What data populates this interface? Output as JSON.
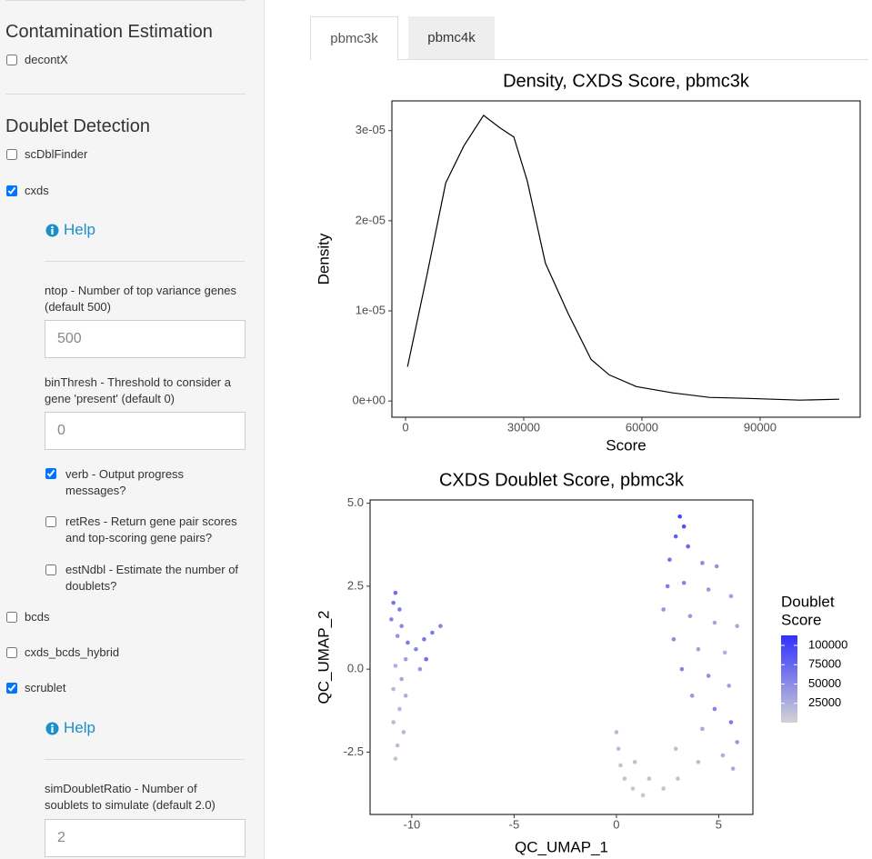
{
  "sidebar": {
    "contamination": {
      "title": "Contamination Estimation",
      "options": [
        {
          "label": "decontX",
          "checked": false
        }
      ]
    },
    "doublet": {
      "title": "Doublet Detection",
      "options": [
        {
          "label": "scDblFinder",
          "checked": false
        },
        {
          "label": "cxds",
          "checked": true
        },
        {
          "label": "bcds",
          "checked": false
        },
        {
          "label": "cxds_bcds_hybrid",
          "checked": false
        },
        {
          "label": "scrublet",
          "checked": true
        }
      ]
    },
    "cxds_params": {
      "help": "Help",
      "inputs": [
        {
          "label": "ntop - Number of top variance genes (default 500)",
          "value": "500"
        },
        {
          "label": "binThresh - Threshold to consider a gene 'present' (default 0)",
          "value": "0"
        }
      ],
      "flags": [
        {
          "label": "verb - Output progress messages?",
          "checked": true
        },
        {
          "label": "retRes - Return gene pair scores and top-scoring gene pairs?",
          "checked": false
        },
        {
          "label": "estNdbl - Estimate the number of doublets?",
          "checked": false
        }
      ]
    },
    "scrublet_params": {
      "help": "Help",
      "inputs": [
        {
          "label": "simDoubletRatio - Number of soublets to simulate (default 2.0)",
          "value": "2"
        }
      ]
    }
  },
  "tabs": {
    "items": [
      "pbmc3k",
      "pbmc4k"
    ],
    "active": 0
  },
  "chart_data": [
    {
      "type": "line",
      "title": "Density, CXDS Score, pbmc3k",
      "x_label": "Score",
      "y_label": "Density",
      "color": "#000000",
      "grid": false,
      "x": [
        500,
        5500,
        10200,
        14800,
        19800,
        24000,
        27500,
        30900,
        35500,
        41300,
        47100,
        51700,
        58600,
        67800,
        77100,
        86300,
        100100,
        110100
      ],
      "y": [
        3.8e-06,
        1.41e-05,
        2.42e-05,
        2.83e-05,
        3.17e-05,
        3.03e-05,
        2.93e-05,
        2.44e-05,
        1.53e-05,
        9.7e-06,
        4.6e-06,
        2.9e-06,
        1.6e-06,
        9e-07,
        4e-07,
        3e-07,
        1e-07,
        2e-07
      ],
      "xlim": [
        -3460,
        115400
      ],
      "xticks": [
        0,
        30000,
        60000,
        90000
      ],
      "ylim": [
        -1.8e-06,
        3.33e-05
      ],
      "yticks": [
        {
          "value": 0,
          "label": "0e+00"
        },
        {
          "value": 1e-05,
          "label": "1e-05"
        },
        {
          "value": 2e-05,
          "label": "2e-05"
        },
        {
          "value": 3e-05,
          "label": "3e-05"
        }
      ]
    },
    {
      "type": "scatter",
      "title": "CXDS Doublet Score, pbmc3k",
      "x_label": "QC_UMAP_1",
      "y_label": "QC_UMAP_2",
      "grid": false,
      "legend_title": [
        "Doublet",
        "Score"
      ],
      "low_color": "#d3d3d3",
      "high_color": "#3030ff",
      "color_lim": [
        0,
        113000
      ],
      "color_ticks": [
        25000,
        50000,
        75000,
        100000
      ],
      "x": [
        -10.8,
        -10.9,
        -10.6,
        -11.0,
        -10.5,
        -10.7,
        -10.2,
        -9.8,
        -9.4,
        -9.0,
        -8.6,
        -9.3,
        -9.6,
        -10.3,
        -10.8,
        -10.5,
        -10.9,
        -10.3,
        -10.6,
        -10.9,
        -10.4,
        -10.7,
        -10.8,
        3.1,
        3.3,
        2.9,
        3.5,
        2.6,
        4.2,
        4.9,
        2.5,
        3.3,
        4.5,
        5.6,
        5.9,
        2.3,
        3.6,
        4.8,
        2.8,
        4.0,
        5.3,
        3.2,
        4.5,
        5.5,
        3.7,
        4.8,
        5.6,
        4.2,
        5.9,
        5.2,
        5.7,
        4.0,
        3.0,
        2.3,
        2.9,
        0.0,
        0.1,
        0.2,
        0.4,
        0.8,
        1.3,
        0.9,
        1.6
      ],
      "y": [
        2.3,
        2.0,
        1.8,
        1.5,
        1.3,
        1.0,
        0.8,
        0.6,
        0.9,
        1.1,
        1.3,
        0.3,
        0.0,
        0.3,
        0.1,
        -0.3,
        -0.6,
        -0.8,
        -1.2,
        -1.6,
        -1.9,
        -2.3,
        -2.7,
        4.6,
        4.3,
        4.0,
        3.7,
        3.3,
        3.2,
        3.1,
        2.5,
        2.6,
        2.4,
        2.2,
        1.3,
        1.8,
        1.6,
        1.4,
        0.9,
        0.6,
        0.5,
        0.0,
        -0.2,
        -0.5,
        -0.8,
        -1.2,
        -1.6,
        -1.8,
        -2.2,
        -2.6,
        -3.0,
        -2.8,
        -3.3,
        -3.6,
        -2.4,
        -1.9,
        -2.4,
        -2.9,
        -3.3,
        -3.6,
        -3.8,
        -2.8,
        -3.3
      ],
      "values": [
        70000,
        65000,
        60000,
        55000,
        50000,
        45000,
        60000,
        55000,
        65000,
        60000,
        55000,
        70000,
        40000,
        35000,
        25000,
        30000,
        20000,
        25000,
        20000,
        18000,
        20000,
        15000,
        12000,
        100000,
        90000,
        80000,
        75000,
        65000,
        50000,
        45000,
        60000,
        55000,
        40000,
        35000,
        30000,
        45000,
        40000,
        30000,
        50000,
        35000,
        25000,
        55000,
        45000,
        35000,
        40000,
        55000,
        60000,
        30000,
        40000,
        25000,
        30000,
        15000,
        12000,
        12000,
        14000,
        18000,
        15000,
        12000,
        12000,
        10000,
        10000,
        14000,
        12000
      ],
      "xlim": [
        -12.04,
        6.67
      ],
      "xticks": [
        -10,
        -5,
        0,
        5
      ],
      "ylim": [
        -4.38,
        5.1
      ],
      "yticks": [
        -2.5,
        {
          "value": 0,
          "label": "0.0"
        },
        2.5,
        {
          "value": 5,
          "label": "5.0"
        }
      ]
    }
  ]
}
